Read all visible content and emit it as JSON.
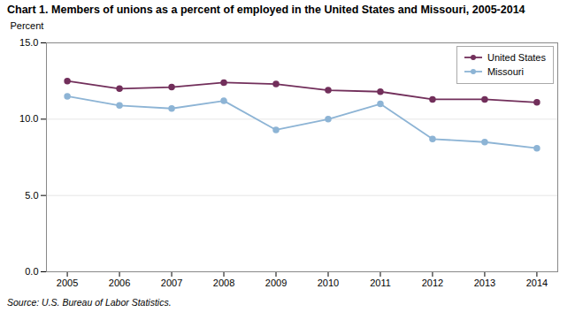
{
  "chart_data": {
    "type": "line",
    "title": "Chart 1. Members of unions as a percent of employed in the United States and Missouri,  2005-2014",
    "y_label": "Percent",
    "source": "Source: U.S. Bureau of Labor Statistics.",
    "x": [
      2005,
      2006,
      2007,
      2008,
      2009,
      2010,
      2011,
      2012,
      2013,
      2014
    ],
    "series": [
      {
        "name": "United States",
        "color": "#722F5B",
        "marker": "circle",
        "values": [
          12.5,
          12.0,
          12.1,
          12.4,
          12.3,
          11.9,
          11.8,
          11.3,
          11.3,
          11.1
        ]
      },
      {
        "name": "Missouri",
        "color": "#8DB4D5",
        "marker": "circle",
        "values": [
          11.5,
          10.9,
          10.7,
          11.2,
          9.3,
          10.0,
          11.0,
          8.7,
          8.5,
          8.1
        ]
      }
    ],
    "xlim": [
      2004.6,
      2014.4
    ],
    "xticks": [
      2005,
      2006,
      2007,
      2008,
      2009,
      2010,
      2011,
      2012,
      2013,
      2014
    ],
    "ylim": [
      0.0,
      15.0
    ],
    "yticks": [
      {
        "value": 0.0,
        "label": "0.0"
      },
      {
        "value": 5.0,
        "label": "5.0"
      },
      {
        "value": 10.0,
        "label": "10.0"
      },
      {
        "value": 15.0,
        "label": "15.0"
      }
    ],
    "grid": true,
    "legend": "upper right"
  }
}
